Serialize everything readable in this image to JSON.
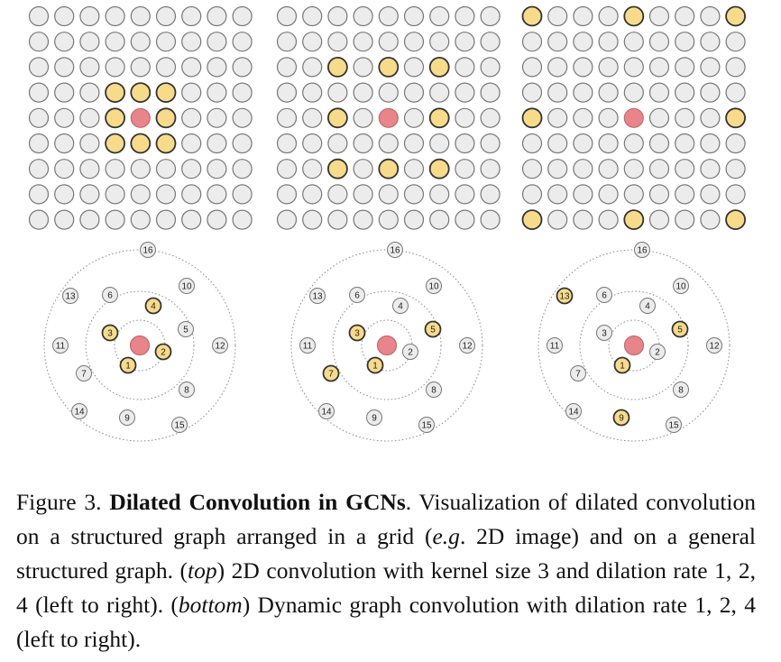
{
  "colors": {
    "node_fill": "#ececec",
    "node_stroke": "#777777",
    "neighbor_fill": "#f8db8a",
    "neighbor_stroke": "#333333",
    "center_fill": "#e8858a",
    "center_stroke": "#c06a6e",
    "ring_stroke": "#888888"
  },
  "grids": [
    {
      "dilation": 1,
      "size": 9,
      "center": [
        4,
        4
      ],
      "highlighted": [
        [
          3,
          3
        ],
        [
          3,
          4
        ],
        [
          3,
          5
        ],
        [
          4,
          3
        ],
        [
          4,
          5
        ],
        [
          5,
          3
        ],
        [
          5,
          4
        ],
        [
          5,
          5
        ]
      ]
    },
    {
      "dilation": 2,
      "size": 9,
      "center": [
        4,
        4
      ],
      "highlighted": [
        [
          2,
          2
        ],
        [
          2,
          4
        ],
        [
          2,
          6
        ],
        [
          4,
          2
        ],
        [
          4,
          6
        ],
        [
          6,
          2
        ],
        [
          6,
          4
        ],
        [
          6,
          6
        ]
      ]
    },
    {
      "dilation": 4,
      "size": 9,
      "center": [
        4,
        4
      ],
      "highlighted": [
        [
          0,
          0
        ],
        [
          0,
          4
        ],
        [
          0,
          8
        ],
        [
          4,
          0
        ],
        [
          4,
          8
        ],
        [
          8,
          0
        ],
        [
          8,
          4
        ],
        [
          8,
          8
        ]
      ]
    }
  ],
  "graph_nodes": [
    "1",
    "2",
    "3",
    "4",
    "5",
    "6",
    "7",
    "8",
    "9",
    "10",
    "11",
    "12",
    "13",
    "14",
    "15",
    "16"
  ],
  "graphs": [
    {
      "dilation": 1,
      "highlighted": [
        "1",
        "2",
        "3",
        "4"
      ]
    },
    {
      "dilation": 2,
      "highlighted": [
        "1",
        "3",
        "5",
        "7"
      ]
    },
    {
      "dilation": 4,
      "highlighted": [
        "1",
        "5",
        "9",
        "13"
      ]
    }
  ],
  "caption": {
    "prefix": "Figure 3. ",
    "title": "Dilated Convolution in GCNs",
    "text1": ". Visualization of dilated convolution on a structured graph arranged in a grid (",
    "eg_italic": "e.g",
    "text2": ". 2D image) and on a general structured graph. (",
    "top_italic": "top",
    "text3": ") 2D convolution with kernel size 3 and dilation rate 1, 2, 4 (left to right). (",
    "bottom_italic": "bottom",
    "text4": ") Dynamic graph convolution with dilation rate 1, 2, 4 (left to right)."
  }
}
